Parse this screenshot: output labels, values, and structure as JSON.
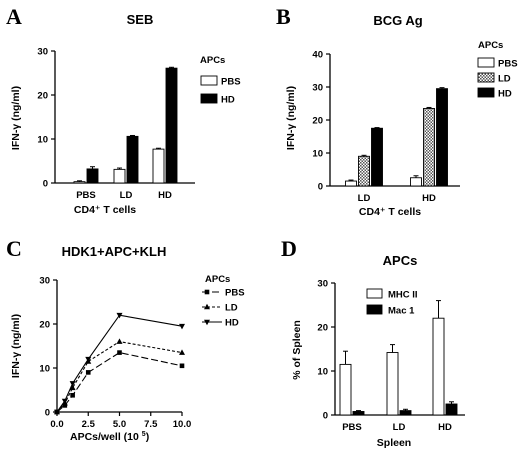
{
  "colors": {
    "ink": "#000000",
    "paper": "#ffffff",
    "hatch": "#555555"
  },
  "chart_data": [
    {
      "id": "A",
      "type": "bar",
      "panel_letter": "A",
      "title": "SEB",
      "xlabel": "CD4⁺ T cells",
      "ylabel": "IFN-γ (ng/ml)",
      "ylim": [
        0,
        30
      ],
      "yticks": [
        0,
        10,
        20,
        30
      ],
      "categories": [
        "PBS",
        "LD",
        "HD"
      ],
      "legend_title": "APCs",
      "legend_placement": "right",
      "series": [
        {
          "name": "PBS",
          "fill": "white",
          "values": [
            0.3,
            3.1,
            7.7
          ],
          "errors": [
            0.2,
            0.3,
            0.2
          ]
        },
        {
          "name": "HD",
          "fill": "black",
          "values": [
            3.2,
            10.6,
            26.1
          ],
          "errors": [
            0.5,
            0.2,
            0.2
          ]
        }
      ]
    },
    {
      "id": "B",
      "type": "bar",
      "panel_letter": "B",
      "title": "BCG Ag",
      "xlabel": "CD4⁺ T cells",
      "ylabel": "IFN-γ (ng/ml)",
      "ylim": [
        0,
        40
      ],
      "yticks": [
        0,
        10,
        20,
        30,
        40
      ],
      "categories": [
        "LD",
        "HD"
      ],
      "legend_title": "APCs",
      "legend_placement": "right",
      "series": [
        {
          "name": "PBS",
          "fill": "white",
          "values": [
            1.5,
            2.5
          ],
          "errors": [
            0.3,
            0.6
          ]
        },
        {
          "name": "LD",
          "fill": "hatch",
          "values": [
            9.0,
            23.5
          ],
          "errors": [
            0.3,
            0.3
          ]
        },
        {
          "name": "HD",
          "fill": "black",
          "values": [
            17.5,
            29.5
          ],
          "errors": [
            0.2,
            0.3
          ]
        }
      ]
    },
    {
      "id": "C",
      "type": "line",
      "panel_letter": "C",
      "title": "HDK1+APC+KLH",
      "xlabel": "APCs/well",
      "xlabel_unit": "(10",
      "xlabel_exp": "5",
      "xlabel_close": ")",
      "ylabel": "IFN-γ (ng/ml)",
      "xlim": [
        0,
        10
      ],
      "ylim": [
        0,
        30
      ],
      "xticks": [
        0.0,
        2.5,
        5.0,
        7.5,
        10.0
      ],
      "xticklabels": [
        "0.0",
        "2.5",
        "5.0",
        "7.5",
        "10.0"
      ],
      "yticks": [
        0,
        10,
        20,
        30
      ],
      "x": [
        0,
        0.625,
        1.25,
        2.5,
        5.0,
        10.0
      ],
      "legend_title": "APCs",
      "legend_placement": "right",
      "series": [
        {
          "name": "PBS",
          "dash": "long",
          "marker": "square",
          "values": [
            0,
            1.5,
            3.8,
            9.0,
            13.5,
            10.5
          ]
        },
        {
          "name": "LD",
          "dash": "short",
          "marker": "triangle-up",
          "values": [
            0,
            2.0,
            5.5,
            11.5,
            16.0,
            13.5
          ]
        },
        {
          "name": "HD",
          "dash": "solid",
          "marker": "triangle-down",
          "values": [
            0,
            2.5,
            6.5,
            12.0,
            22.0,
            19.5
          ]
        }
      ]
    },
    {
      "id": "D",
      "type": "bar",
      "panel_letter": "D",
      "title": "APCs",
      "xlabel": "Spleen",
      "ylabel": "% of Spleen",
      "ylim": [
        0,
        30
      ],
      "yticks": [
        0,
        10,
        20,
        30
      ],
      "categories": [
        "PBS",
        "LD",
        "HD"
      ],
      "legend_placement": "top-left",
      "series": [
        {
          "name": "MHC II",
          "fill": "white",
          "values": [
            11.5,
            14.2,
            22.0
          ],
          "errors": [
            3.0,
            1.8,
            4.0
          ]
        },
        {
          "name": "Mac 1",
          "fill": "black",
          "values": [
            0.8,
            1.0,
            2.5
          ],
          "errors": [
            0.2,
            0.3,
            0.5
          ]
        }
      ]
    }
  ]
}
